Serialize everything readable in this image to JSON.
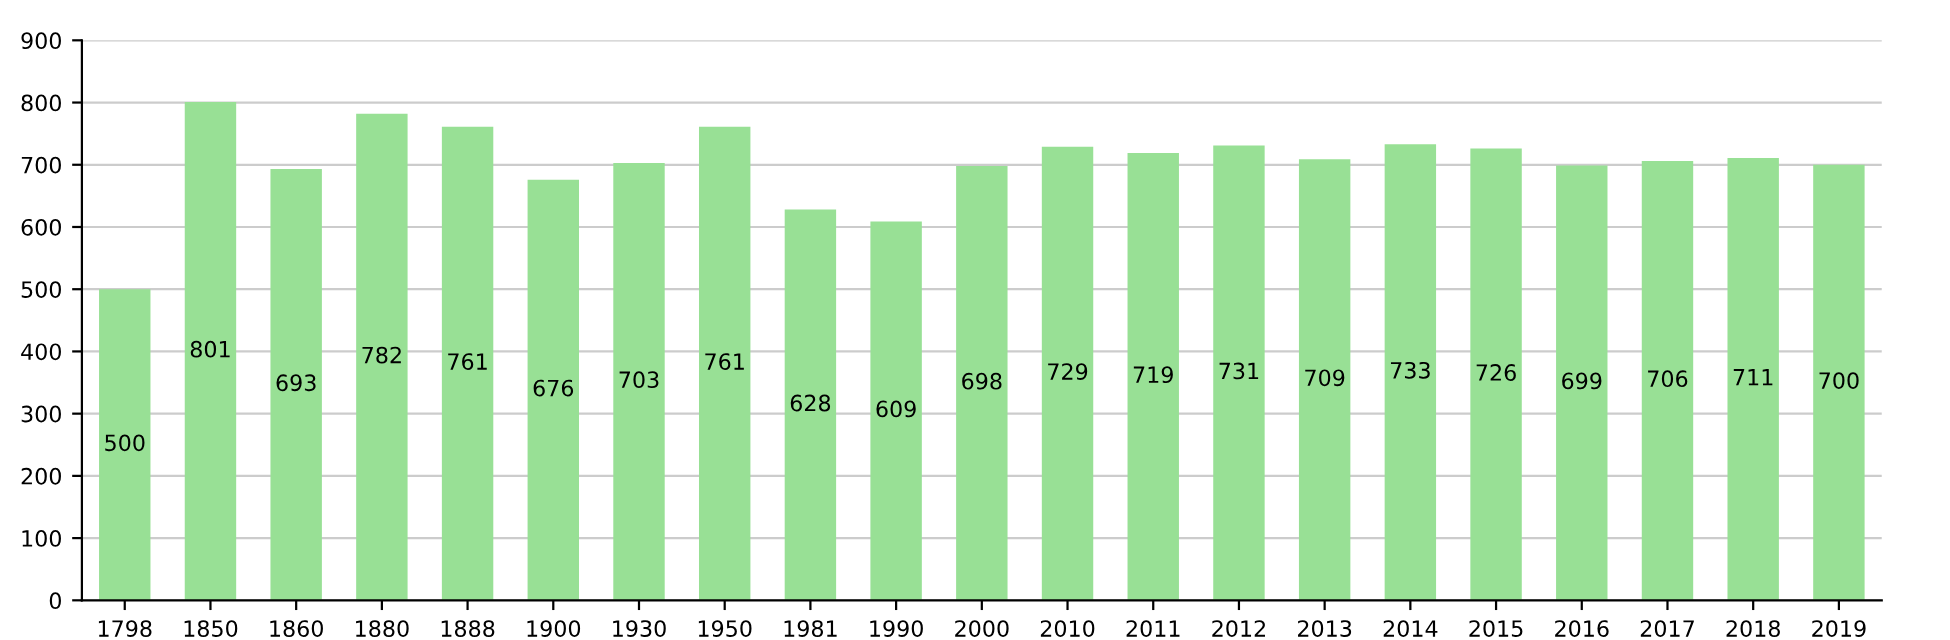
{
  "chart_data": {
    "type": "bar",
    "categories": [
      "1798",
      "1850",
      "1860",
      "1880",
      "1888",
      "1900",
      "1930",
      "1950",
      "1981",
      "1990",
      "2000",
      "2010",
      "2011",
      "2012",
      "2013",
      "2014",
      "2015",
      "2016",
      "2017",
      "2018",
      "2019"
    ],
    "values": [
      500,
      801,
      693,
      782,
      761,
      676,
      703,
      761,
      628,
      609,
      698,
      729,
      719,
      731,
      709,
      733,
      726,
      699,
      706,
      711,
      700
    ],
    "color": "#98e095",
    "ylim": [
      0,
      900
    ],
    "yticks": [
      0,
      100,
      200,
      300,
      400,
      500,
      600,
      700,
      800,
      900
    ],
    "grid": "y",
    "data_labels": true
  }
}
